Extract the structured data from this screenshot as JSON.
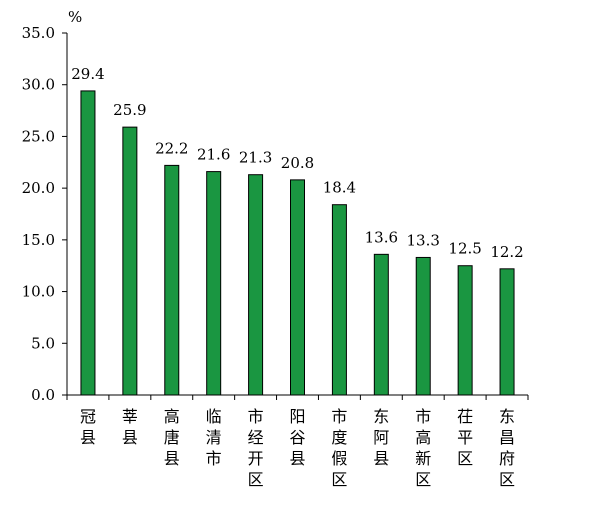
{
  "chart_data": {
    "type": "bar",
    "unit": "%",
    "categories": [
      "冠县",
      "莘县",
      "高唐县",
      "临清市",
      "市经开区",
      "阳谷县",
      "市度假区",
      "东阿县",
      "市高新区",
      "茌平区",
      "东昌府区"
    ],
    "values": [
      29.4,
      25.9,
      22.2,
      21.6,
      21.3,
      20.8,
      18.4,
      13.6,
      13.3,
      12.5,
      12.2
    ],
    "value_labels": [
      "29.4",
      "25.9",
      "22.2",
      "21.6",
      "21.3",
      "20.8",
      "18.4",
      "13.6",
      "13.3",
      "12.5",
      "12.2"
    ],
    "ylim": [
      0,
      35
    ],
    "yticks": [
      "0.0",
      "5.0",
      "10.0",
      "15.0",
      "20.0",
      "25.0",
      "30.0",
      "35.0"
    ],
    "bar_color": "#1a9641",
    "bar_edge_color": "#000000",
    "grid": false,
    "legend": "none"
  }
}
